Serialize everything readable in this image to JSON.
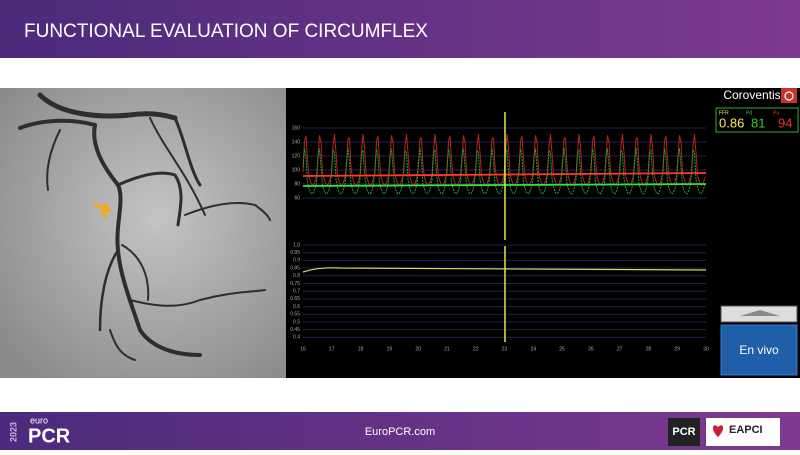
{
  "header": {
    "title": "FUNCTIONAL EVALUATION OF CIRCUMFLEX"
  },
  "monitor": {
    "brand": "Coroventis",
    "readouts": [
      {
        "label": "FFR",
        "value": 0.86
      },
      {
        "label": "Pd",
        "value": 81
      },
      {
        "label": "Pa",
        "value": 94
      }
    ],
    "button": "En vivo",
    "pressure_ticks": [
      160,
      140,
      120,
      100,
      80,
      60
    ],
    "ratio_ticks": [
      "1.0",
      "0.95",
      "0.9",
      "0.85",
      "0.8",
      "0.75",
      "0.7",
      "0.65",
      "0.6",
      "0.55",
      "0.5",
      "0.45",
      "0.4"
    ],
    "time_ticks": [
      16,
      17,
      18,
      19,
      20,
      21,
      22,
      23,
      24,
      25,
      26,
      27,
      28,
      29,
      30
    ]
  },
  "footer": {
    "year": "2023",
    "logo_small": "euro",
    "logo": "PCR",
    "site": "EuroPCR.com",
    "partner_pcr": "PCR",
    "partner": "EAPCI"
  }
}
